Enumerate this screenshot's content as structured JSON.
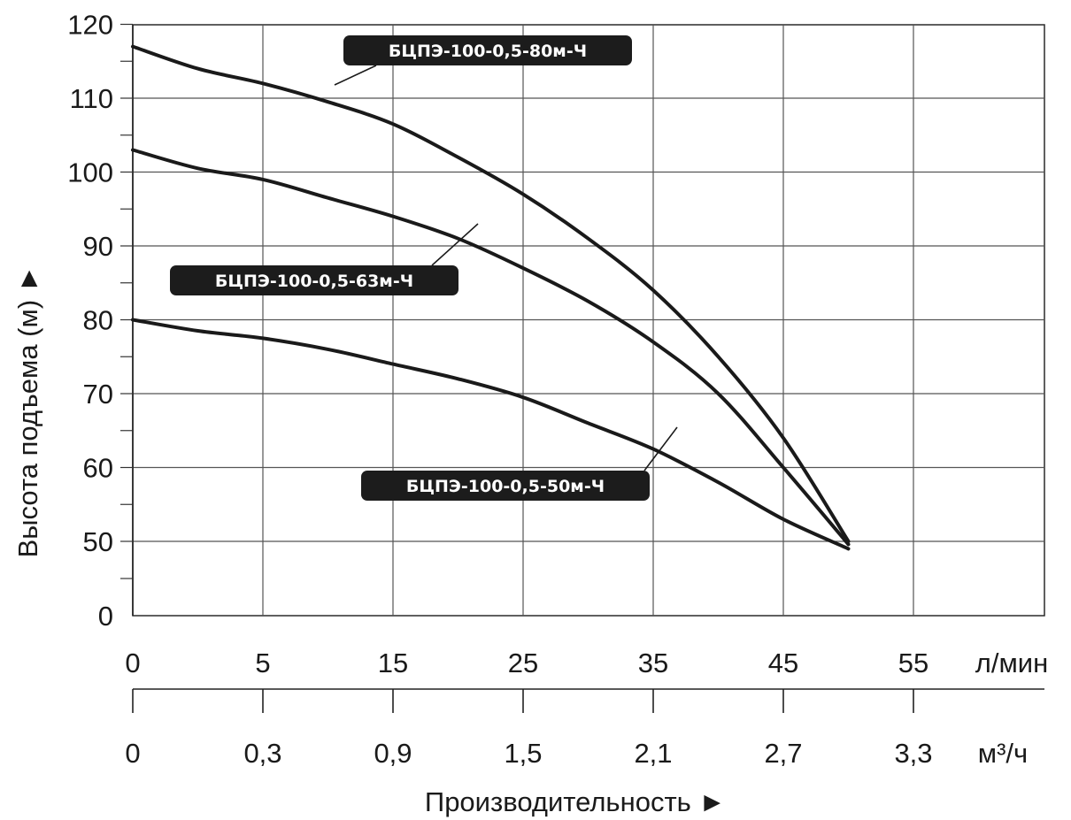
{
  "chart_data": {
    "type": "line",
    "xlabel": "Производительность ►",
    "ylabel": "Высота подъема (м) ►",
    "x_unit_primary": "л/мин",
    "x_unit_secondary": "м³/ч",
    "x_ticks_primary": [
      "0",
      "5",
      "15",
      "25",
      "35",
      "45",
      "55"
    ],
    "x_ticks_secondary": [
      "0",
      "0,3",
      "0,9",
      "1,5",
      "2,1",
      "2,7",
      "3,3"
    ],
    "y_ticks": [
      "0",
      "50",
      "60",
      "70",
      "80",
      "90",
      "100",
      "110",
      "120"
    ],
    "ylim": [
      0,
      120
    ],
    "xlim": [
      0,
      65
    ],
    "grid": true,
    "series": [
      {
        "name": "БЦПЭ-100-0,5-80м-Ч",
        "x": [
          0,
          5,
          10,
          15,
          20,
          25,
          30,
          35,
          40,
          45,
          50,
          55
        ],
        "y": [
          117,
          114,
          112,
          109.5,
          106.5,
          102,
          97,
          91,
          84,
          75,
          64,
          50
        ]
      },
      {
        "name": "БЦПЭ-100-0,5-63м-Ч",
        "x": [
          0,
          5,
          10,
          15,
          20,
          25,
          30,
          35,
          40,
          45,
          50,
          55
        ],
        "y": [
          103,
          100.5,
          99,
          96.5,
          94,
          91,
          87,
          82.5,
          77,
          70,
          60,
          48
        ]
      },
      {
        "name": "БЦПЭ-100-0,5-50м-Ч",
        "x": [
          0,
          5,
          10,
          15,
          20,
          25,
          30,
          35,
          40,
          45,
          50,
          55
        ],
        "y": [
          80,
          78.5,
          77.5,
          76,
          74,
          72,
          69.5,
          66,
          62.5,
          58,
          53,
          45
        ]
      }
    ]
  }
}
